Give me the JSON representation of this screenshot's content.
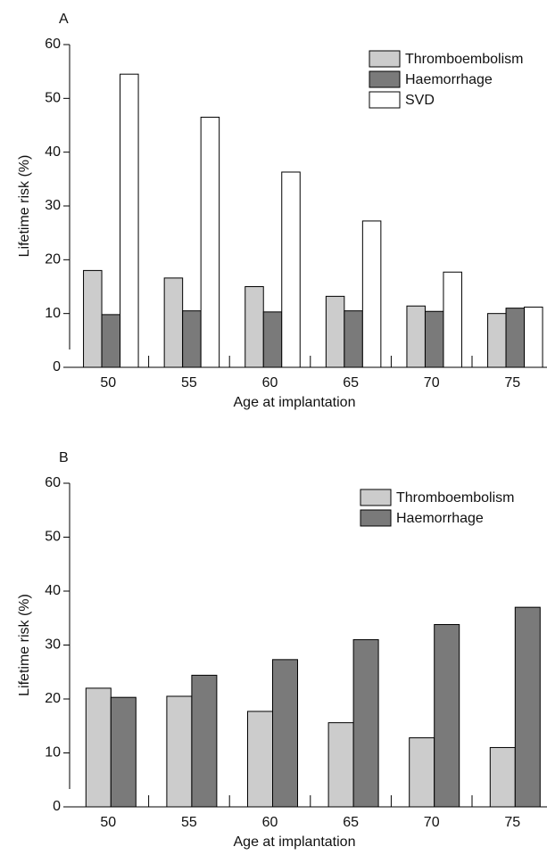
{
  "chart_data": [
    {
      "type": "bar",
      "title": "A",
      "x_label": "Age at implantation",
      "y_label": "Lifetime risk (%)",
      "categories": [
        "50",
        "55",
        "60",
        "65",
        "70",
        "75"
      ],
      "series": [
        {
          "name": "Thromboembolism",
          "color": "#cccccc",
          "values": [
            18,
            16.6,
            15,
            13.2,
            11.4,
            10
          ]
        },
        {
          "name": "Haemorrhage",
          "color": "#7a7a7a",
          "values": [
            9.8,
            10.5,
            10.3,
            10.5,
            10.4,
            11
          ]
        },
        {
          "name": "SVD",
          "color": "#ffffff",
          "values": [
            54.5,
            46.5,
            36.3,
            27.2,
            17.7,
            11.2
          ]
        }
      ],
      "ylim": [
        0,
        60
      ],
      "yticks": [
        0,
        10,
        20,
        30,
        40,
        50,
        60
      ],
      "legend": "upper right"
    },
    {
      "type": "bar",
      "title": "B",
      "x_label": "Age at implantation",
      "y_label": "Lifetime risk (%)",
      "categories": [
        "50",
        "55",
        "60",
        "65",
        "70",
        "75"
      ],
      "series": [
        {
          "name": "Thromboembolism",
          "color": "#cccccc",
          "values": [
            22,
            20.5,
            17.7,
            15.6,
            12.8,
            11
          ]
        },
        {
          "name": "Haemorrhage",
          "color": "#7a7a7a",
          "values": [
            20.3,
            24.4,
            27.3,
            31,
            33.8,
            37
          ]
        }
      ],
      "ylim": [
        0,
        60
      ],
      "yticks": [
        0,
        10,
        20,
        30,
        40,
        50,
        60
      ],
      "legend": "upper right"
    }
  ]
}
